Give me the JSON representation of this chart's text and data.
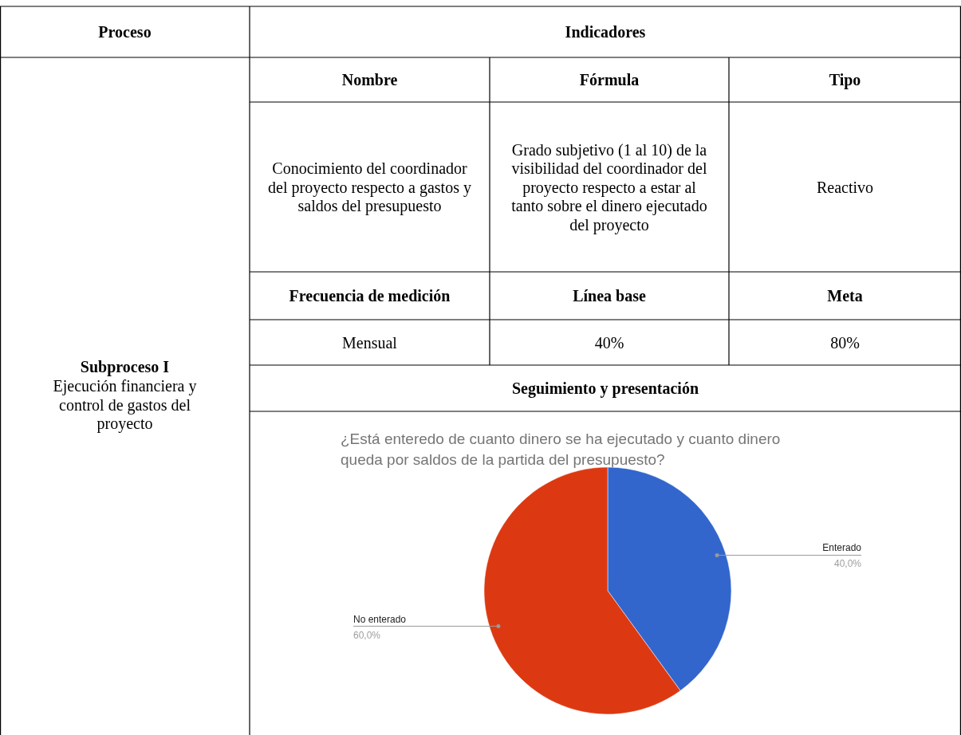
{
  "chart_data": [
    {
      "type": "other",
      "annotations": [
        "Proceso",
        "Indicadores",
        "Nombre",
        "Fórmula",
        "Tipo",
        "Conocimiento del coordinador del proyecto respecto a gastos y saldos del presupuesto",
        "Grado subjetivo (1 al 10) de la visibilidad del coordinador del proyecto respecto a estar al tanto sobre el dinero ejecutado del proyecto",
        "Reactivo",
        "Frecuencia de medición",
        "Línea base",
        "Meta",
        "Mensual",
        "40%",
        "80%",
        "Seguimiento y presentación",
        "Subproceso I",
        "Ejecución financiera y control de gastos del proyecto"
      ]
    },
    {
      "type": "pie",
      "title": "¿Está enteredo de cuanto dinero se ha ejecutado y cuanto dinero queda por saldos de la partida del presupuesto?",
      "categories": [
        "Enterado",
        "No enterado"
      ],
      "values": [
        40,
        60
      ],
      "colors": [
        "#3366cc",
        "#dc3912"
      ],
      "value_labels": [
        "40,0%",
        "60,0%"
      ]
    }
  ]
}
